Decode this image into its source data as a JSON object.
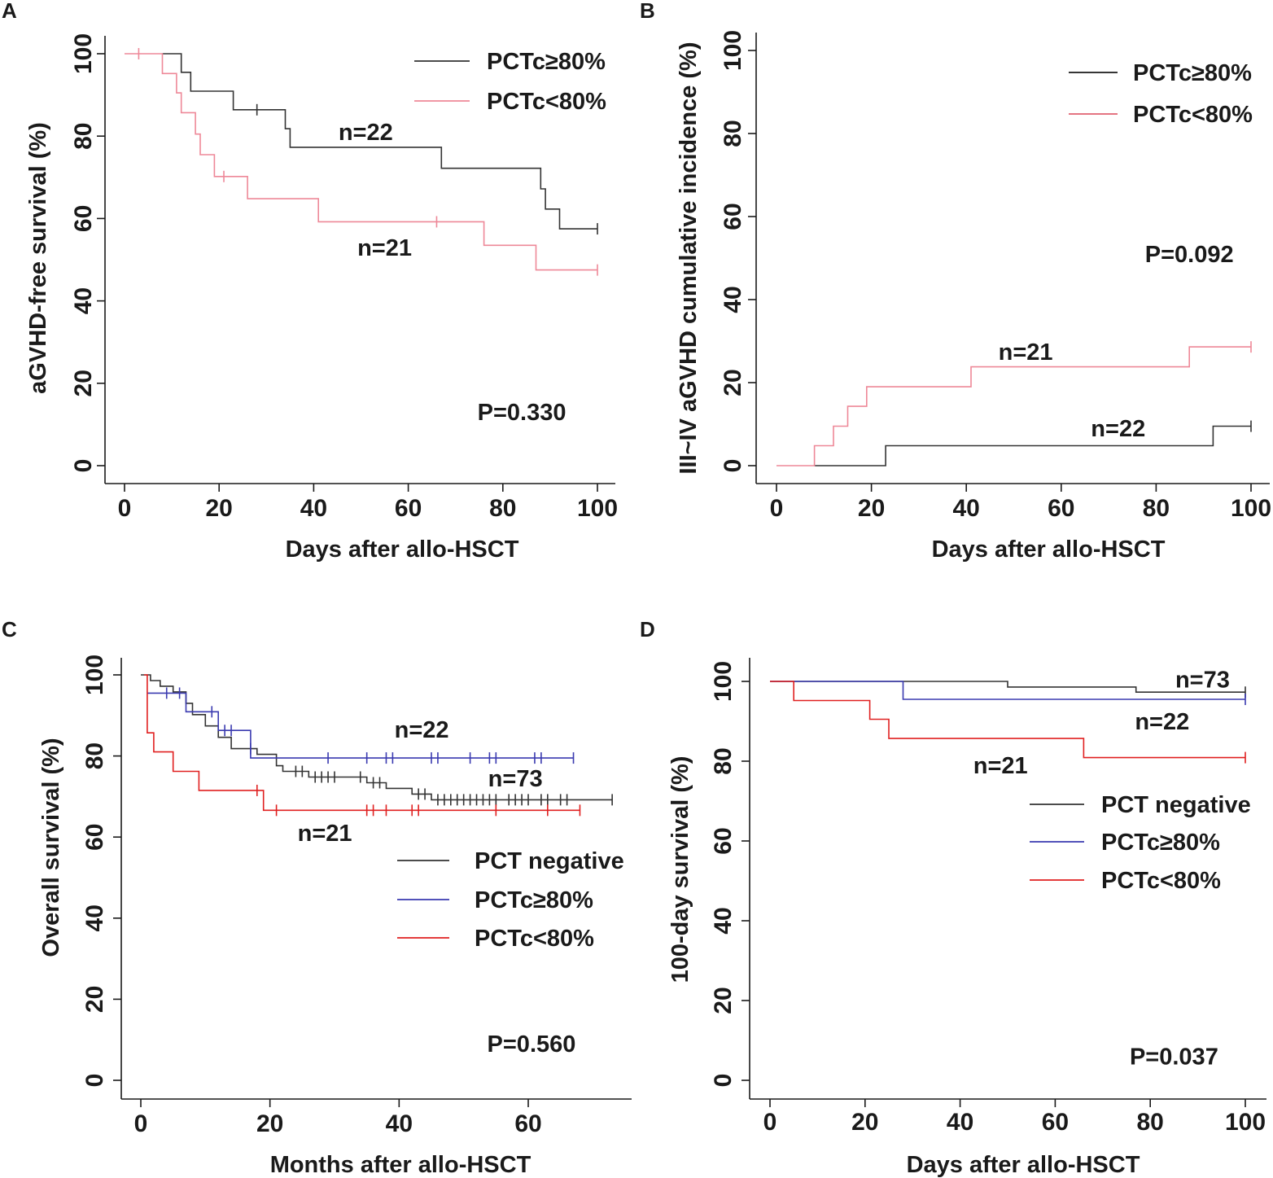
{
  "chart_data": [
    {
      "id": "A",
      "type": "line",
      "panel_label": "A",
      "xlabel": "Days after allo-HSCT",
      "ylabel": "aGVHD-free survival (%)",
      "xlim": [
        0,
        100
      ],
      "ylim": [
        0,
        100
      ],
      "xticks": [
        0,
        20,
        40,
        60,
        80,
        100
      ],
      "yticks": [
        0,
        20,
        40,
        60,
        80,
        100
      ],
      "legend": [
        {
          "label": "PCTc≥80%",
          "color": "#333333"
        },
        {
          "label": "PCTc<80%",
          "color": "#ee8898"
        }
      ],
      "series": [
        {
          "name": "PCTc≥80%",
          "color": "#333333",
          "step": "post",
          "points": [
            [
              8,
              100
            ],
            [
              12,
              100
            ],
            [
              12,
              95.5
            ],
            [
              14,
              95.5
            ],
            [
              14,
              90.9
            ],
            [
              23,
              90.9
            ],
            [
              23,
              86.4
            ],
            [
              34,
              86.4
            ],
            [
              34,
              81.8
            ],
            [
              35,
              81.8
            ],
            [
              35,
              77.3
            ],
            [
              67,
              77.3
            ],
            [
              67,
              72.2
            ],
            [
              88,
              72.2
            ],
            [
              88,
              67.2
            ],
            [
              89,
              67.2
            ],
            [
              89,
              62.3
            ],
            [
              92,
              62.3
            ],
            [
              92,
              57.5
            ],
            [
              100,
              57.5
            ]
          ],
          "censor": [
            [
              28,
              86.4
            ],
            [
              100,
              57.5
            ]
          ]
        },
        {
          "name": "PCTc<80%",
          "color": "#ee8898",
          "step": "post",
          "points": [
            [
              0,
              100
            ],
            [
              8,
              100
            ],
            [
              8,
              95.2
            ],
            [
              11,
              95.2
            ],
            [
              11,
              90.5
            ],
            [
              12,
              90.5
            ],
            [
              12,
              85.7
            ],
            [
              15,
              85.7
            ],
            [
              15,
              80.5
            ],
            [
              16,
              80.5
            ],
            [
              16,
              75.5
            ],
            [
              19,
              75.5
            ],
            [
              19,
              70.2
            ],
            [
              26,
              70.2
            ],
            [
              26,
              64.8
            ],
            [
              41,
              64.8
            ],
            [
              41,
              59.2
            ],
            [
              76,
              59.2
            ],
            [
              76,
              53.5
            ],
            [
              87,
              53.5
            ],
            [
              87,
              47.5
            ],
            [
              100,
              47.5
            ]
          ],
          "censor": [
            [
              3,
              100
            ],
            [
              21,
              70.2
            ],
            [
              66,
              59.2
            ],
            [
              100,
              47.5
            ]
          ]
        }
      ],
      "annotations": [
        {
          "text": "n=22",
          "x": 51,
          "y": 81
        },
        {
          "text": "n=21",
          "x": 55,
          "y": 53
        },
        {
          "text": "P=0.330",
          "x": 84,
          "y": 13
        }
      ]
    },
    {
      "id": "B",
      "type": "line",
      "panel_label": "B",
      "xlabel": "Days after allo-HSCT",
      "ylabel": "III~IV aGVHD cumulative incidence (%)",
      "xlim": [
        0,
        100
      ],
      "ylim": [
        0,
        100
      ],
      "xticks": [
        0,
        20,
        40,
        60,
        80,
        100
      ],
      "yticks": [
        0,
        20,
        40,
        60,
        80,
        100
      ],
      "legend": [
        {
          "label": "PCTc≥80%",
          "color": "#1a1a1a"
        },
        {
          "label": "PCTc<80%",
          "color": "#e06070"
        }
      ],
      "series": [
        {
          "name": "PCTc≥80%",
          "color": "#333333",
          "step": "post",
          "points": [
            [
              8,
              0
            ],
            [
              23,
              0
            ],
            [
              23,
              4.8
            ],
            [
              92,
              4.8
            ],
            [
              92,
              9.5
            ],
            [
              100,
              9.5
            ]
          ],
          "censor": [
            [
              100,
              9.5
            ]
          ]
        },
        {
          "name": "PCTc<80%",
          "color": "#ee8898",
          "step": "post",
          "points": [
            [
              0,
              0
            ],
            [
              8,
              0
            ],
            [
              8,
              4.8
            ],
            [
              12,
              4.8
            ],
            [
              12,
              9.5
            ],
            [
              15,
              9.5
            ],
            [
              15,
              14.3
            ],
            [
              19,
              14.3
            ],
            [
              19,
              19
            ],
            [
              41,
              19
            ],
            [
              41,
              23.8
            ],
            [
              87,
              23.8
            ],
            [
              87,
              28.6
            ],
            [
              100,
              28.6
            ]
          ],
          "censor": [
            [
              100,
              28.6
            ]
          ]
        }
      ],
      "annotations": [
        {
          "text": "n=21",
          "x": 52.5,
          "y": 27.5
        },
        {
          "text": "n=22",
          "x": 72,
          "y": 9
        },
        {
          "text": "P=0.092",
          "x": 87,
          "y": 51
        }
      ]
    },
    {
      "id": "C",
      "type": "line",
      "panel_label": "C",
      "xlabel": "Months after allo-HSCT",
      "ylabel": "Overall survival (%)",
      "xlim": [
        0,
        75
      ],
      "ylim": [
        0,
        100
      ],
      "xticks": [
        0,
        20,
        40,
        60
      ],
      "yticks": [
        0,
        20,
        40,
        60,
        80,
        100
      ],
      "legend": [
        {
          "label": "PCT negative",
          "color": "#333333"
        },
        {
          "label": "PCTc≥80%",
          "color": "#3a3ab0"
        },
        {
          "label": "PCTc<80%",
          "color": "#e02020"
        }
      ],
      "series": [
        {
          "name": "PCT negative",
          "color": "#333333",
          "step": "post",
          "points": [
            [
              0,
              100
            ],
            [
              1.5,
              100
            ],
            [
              1.5,
              98.6
            ],
            [
              3,
              98.6
            ],
            [
              3,
              97.2
            ],
            [
              5,
              97.2
            ],
            [
              5,
              95.8
            ],
            [
              7,
              95.8
            ],
            [
              7,
              93
            ],
            [
              8,
              93
            ],
            [
              8,
              90.2
            ],
            [
              10,
              90.2
            ],
            [
              10,
              87.4
            ],
            [
              12,
              87.4
            ],
            [
              12,
              84.6
            ],
            [
              14,
              84.6
            ],
            [
              14,
              81.8
            ],
            [
              18,
              81.8
            ],
            [
              18,
              80.4
            ],
            [
              21,
              80.4
            ],
            [
              21,
              77.6
            ],
            [
              22,
              77.6
            ],
            [
              22,
              76.2
            ],
            [
              26,
              76.2
            ],
            [
              26,
              74.8
            ],
            [
              35,
              74.8
            ],
            [
              35,
              73.4
            ],
            [
              38,
              73.4
            ],
            [
              38,
              72
            ],
            [
              42,
              72
            ],
            [
              42,
              70.6
            ],
            [
              45,
              70.6
            ],
            [
              45,
              69.2
            ],
            [
              73,
              69.2
            ]
          ],
          "censor": [
            [
              24,
              76.2
            ],
            [
              25,
              76.2
            ],
            [
              27,
              74.8
            ],
            [
              28,
              74.8
            ],
            [
              29,
              74.8
            ],
            [
              30,
              74.8
            ],
            [
              34,
              74.8
            ],
            [
              36,
              73.4
            ],
            [
              37,
              73.4
            ],
            [
              43,
              70.6
            ],
            [
              44,
              70.6
            ],
            [
              46,
              69.2
            ],
            [
              47,
              69.2
            ],
            [
              48,
              69.2
            ],
            [
              49,
              69.2
            ],
            [
              50,
              69.2
            ],
            [
              51,
              69.2
            ],
            [
              52,
              69.2
            ],
            [
              53,
              69.2
            ],
            [
              54,
              69.2
            ],
            [
              55,
              69.2
            ],
            [
              57,
              69.2
            ],
            [
              58,
              69.2
            ],
            [
              59,
              69.2
            ],
            [
              60,
              69.2
            ],
            [
              62,
              69.2
            ],
            [
              63,
              69.2
            ],
            [
              65,
              69.2
            ],
            [
              66,
              69.2
            ],
            [
              73,
              69.2
            ]
          ]
        },
        {
          "name": "PCTc≥80%",
          "color": "#3a3ab0",
          "step": "post",
          "points": [
            [
              1,
              95.5
            ],
            [
              7,
              95.5
            ],
            [
              7,
              90.9
            ],
            [
              12,
              90.9
            ],
            [
              12,
              86.3
            ],
            [
              17,
              86.3
            ],
            [
              17,
              79.5
            ],
            [
              67,
              79.5
            ]
          ],
          "censor": [
            [
              4,
              95.5
            ],
            [
              6,
              95.5
            ],
            [
              11,
              90.9
            ],
            [
              13,
              86.3
            ],
            [
              14,
              86.3
            ],
            [
              17,
              81.8
            ],
            [
              29,
              79.5
            ],
            [
              35,
              79.5
            ],
            [
              38,
              79.5
            ],
            [
              39,
              79.5
            ],
            [
              45,
              79.5
            ],
            [
              46,
              79.5
            ],
            [
              51,
              79.5
            ],
            [
              54,
              79.5
            ],
            [
              55,
              79.5
            ],
            [
              61,
              79.5
            ],
            [
              62,
              79.5
            ],
            [
              67,
              79.5
            ]
          ]
        },
        {
          "name": "PCTc<80%",
          "color": "#e02020",
          "step": "post",
          "points": [
            [
              0.5,
              100
            ],
            [
              1,
              100
            ],
            [
              1,
              85.7
            ],
            [
              2,
              85.7
            ],
            [
              2,
              81
            ],
            [
              5,
              81
            ],
            [
              5,
              76.2
            ],
            [
              9,
              76.2
            ],
            [
              9,
              71.5
            ],
            [
              19,
              71.5
            ],
            [
              19,
              66.6
            ],
            [
              68,
              66.6
            ]
          ],
          "censor": [
            [
              18,
              71.5
            ],
            [
              21,
              66.6
            ],
            [
              35,
              66.6
            ],
            [
              36,
              66.6
            ],
            [
              38,
              66.6
            ],
            [
              42,
              66.6
            ],
            [
              43,
              66.6
            ],
            [
              55,
              66.6
            ],
            [
              63,
              66.6
            ],
            [
              68,
              66.6
            ]
          ]
        }
      ],
      "annotations": [
        {
          "text": "n=22",
          "x": 43.5,
          "y": 86.5
        },
        {
          "text": "n=73",
          "x": 58,
          "y": 74.5
        },
        {
          "text": "n=21",
          "x": 28.5,
          "y": 61
        },
        {
          "text": "P=0.560",
          "x": 60.5,
          "y": 9
        }
      ]
    },
    {
      "id": "D",
      "type": "line",
      "panel_label": "D",
      "xlabel": "Days after allo-HSCT",
      "ylabel": "100-day survival (%)",
      "xlim": [
        0,
        100
      ],
      "ylim": [
        0,
        100
      ],
      "xticks": [
        0,
        20,
        40,
        60,
        80,
        100
      ],
      "yticks": [
        0,
        20,
        40,
        60,
        80,
        100
      ],
      "legend": [
        {
          "label": "PCT negative",
          "color": "#333333"
        },
        {
          "label": "PCTc≥80%",
          "color": "#3a3ab0"
        },
        {
          "label": "PCTc<80%",
          "color": "#e02020"
        }
      ],
      "series": [
        {
          "name": "PCT negative",
          "color": "#333333",
          "step": "post",
          "points": [
            [
              0,
              100
            ],
            [
              50,
              100
            ],
            [
              50,
              98.6
            ],
            [
              77,
              98.6
            ],
            [
              77,
              97.3
            ],
            [
              100,
              97.3
            ]
          ],
          "censor": [
            [
              100,
              97.3
            ]
          ]
        },
        {
          "name": "PCTc≥80%",
          "color": "#3a3ab0",
          "step": "post",
          "points": [
            [
              0,
              100
            ],
            [
              28,
              100
            ],
            [
              28,
              95.5
            ],
            [
              100,
              95.5
            ]
          ],
          "censor": [
            [
              100,
              95.5
            ]
          ]
        },
        {
          "name": "PCTc<80%",
          "color": "#e02020",
          "step": "post",
          "points": [
            [
              0,
              100
            ],
            [
              5,
              100
            ],
            [
              5,
              95.2
            ],
            [
              21,
              95.2
            ],
            [
              21,
              90.5
            ],
            [
              25,
              90.5
            ],
            [
              25,
              85.7
            ],
            [
              66,
              85.7
            ],
            [
              66,
              80.9
            ],
            [
              100,
              80.9
            ]
          ],
          "censor": [
            [
              100,
              80.9
            ]
          ]
        }
      ],
      "annotations": [
        {
          "text": "n=73",
          "x": 91,
          "y": 100.5
        },
        {
          "text": "n=22",
          "x": 82.5,
          "y": 90
        },
        {
          "text": "n=21",
          "x": 48.5,
          "y": 79
        },
        {
          "text": "P=0.037",
          "x": 85,
          "y": 6
        }
      ]
    }
  ]
}
